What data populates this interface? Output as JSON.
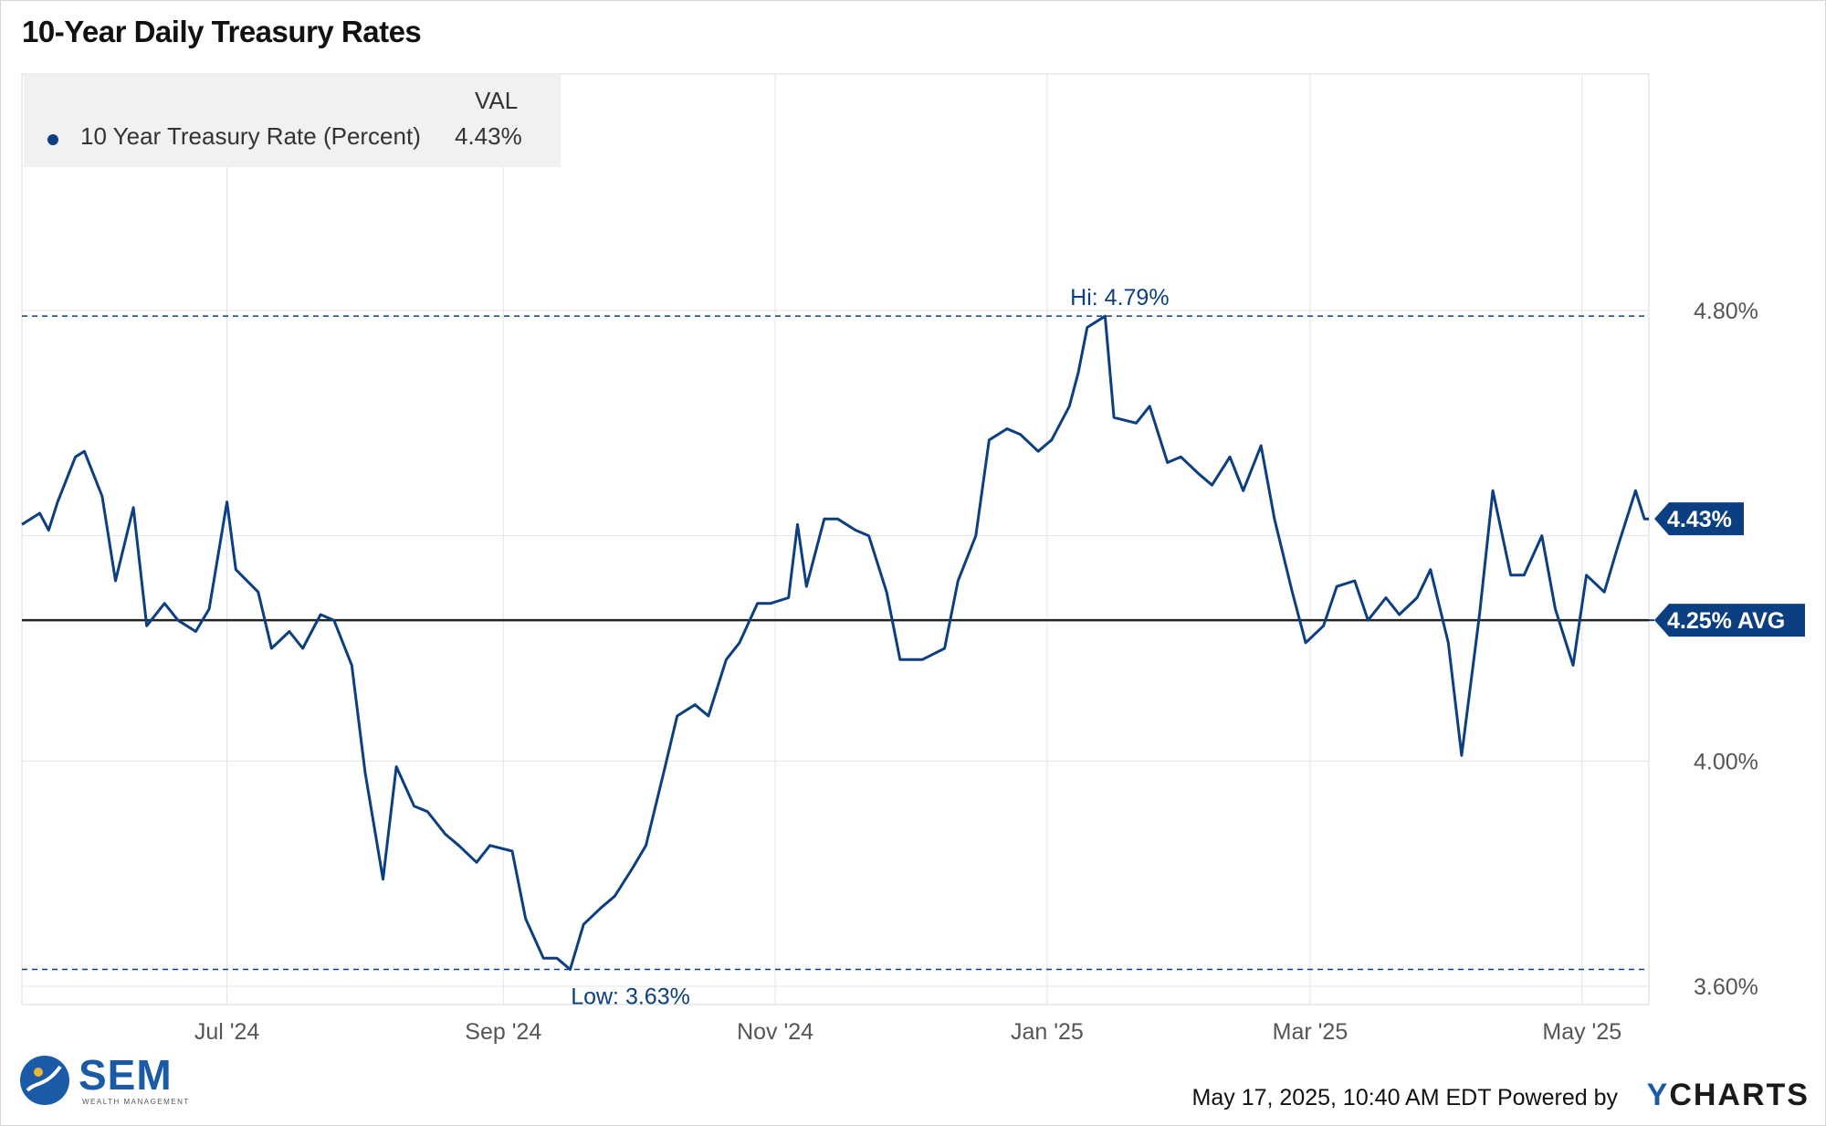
{
  "title": "10-Year Daily Treasury Rates",
  "legend": {
    "header": "VAL",
    "series_name": "10 Year Treasury Rate (Percent)",
    "series_value": "4.43%"
  },
  "footer": {
    "timestamp": "May 17, 2025, 10:40 AM EDT Powered by",
    "provider_y": "Y",
    "provider_rest": "CHARTS"
  },
  "logo": {
    "brand": "SEM",
    "tagline": "WEALTH MANAGEMENT"
  },
  "colors": {
    "series": "#0c3f82",
    "avg_line": "#222222",
    "grid": "#e3e3e3",
    "text_muted": "#555555"
  },
  "chart_data": {
    "type": "line",
    "title": "10-Year Daily Treasury Rates",
    "ylim": [
      3.6,
      4.8
    ],
    "y_ticks": [
      {
        "value": 4.8,
        "label": "4.80%"
      },
      {
        "value": 4.0,
        "label": "4.00%"
      },
      {
        "value": 3.6,
        "label": "3.60%"
      }
    ],
    "x_ticks": [
      {
        "date": "2024-07-01",
        "label": "Jul '24"
      },
      {
        "date": "2024-09-01",
        "label": "Sep '24"
      },
      {
        "date": "2024-11-01",
        "label": "Nov '24"
      },
      {
        "date": "2025-01-01",
        "label": "Jan '25"
      },
      {
        "date": "2025-03-01",
        "label": "Mar '25"
      },
      {
        "date": "2025-05-01",
        "label": "May '25"
      }
    ],
    "x_range": [
      "2024-05-16",
      "2025-05-16"
    ],
    "grid": true,
    "legend_position": "top-left",
    "reference_lines": [
      {
        "kind": "high",
        "value": 4.79,
        "label": "Hi: 4.79%"
      },
      {
        "kind": "low",
        "value": 3.63,
        "label": "Low: 3.63%"
      },
      {
        "kind": "avg",
        "value": 4.25,
        "label": "4.25% AVG"
      }
    ],
    "last_value": {
      "value": 4.43,
      "label": "4.43%"
    },
    "series": [
      {
        "name": "10 Year Treasury Rate (Percent)",
        "points": [
          [
            "2024-05-16",
            4.42
          ],
          [
            "2024-05-20",
            4.44
          ],
          [
            "2024-05-22",
            4.41
          ],
          [
            "2024-05-24",
            4.46
          ],
          [
            "2024-05-28",
            4.54
          ],
          [
            "2024-05-30",
            4.55
          ],
          [
            "2024-06-03",
            4.47
          ],
          [
            "2024-06-06",
            4.32
          ],
          [
            "2024-06-10",
            4.45
          ],
          [
            "2024-06-13",
            4.24
          ],
          [
            "2024-06-17",
            4.28
          ],
          [
            "2024-06-20",
            4.25
          ],
          [
            "2024-06-24",
            4.23
          ],
          [
            "2024-06-27",
            4.27
          ],
          [
            "2024-07-01",
            4.46
          ],
          [
            "2024-07-03",
            4.34
          ],
          [
            "2024-07-08",
            4.3
          ],
          [
            "2024-07-11",
            4.2
          ],
          [
            "2024-07-15",
            4.23
          ],
          [
            "2024-07-18",
            4.2
          ],
          [
            "2024-07-22",
            4.26
          ],
          [
            "2024-07-25",
            4.25
          ],
          [
            "2024-07-29",
            4.17
          ],
          [
            "2024-08-01",
            3.98
          ],
          [
            "2024-08-05",
            3.79
          ],
          [
            "2024-08-08",
            3.99
          ],
          [
            "2024-08-12",
            3.92
          ],
          [
            "2024-08-15",
            3.91
          ],
          [
            "2024-08-19",
            3.87
          ],
          [
            "2024-08-22",
            3.85
          ],
          [
            "2024-08-26",
            3.82
          ],
          [
            "2024-08-29",
            3.85
          ],
          [
            "2024-09-03",
            3.84
          ],
          [
            "2024-09-06",
            3.72
          ],
          [
            "2024-09-10",
            3.65
          ],
          [
            "2024-09-13",
            3.65
          ],
          [
            "2024-09-16",
            3.63
          ],
          [
            "2024-09-19",
            3.71
          ],
          [
            "2024-09-23",
            3.74
          ],
          [
            "2024-09-26",
            3.76
          ],
          [
            "2024-09-30",
            3.81
          ],
          [
            "2024-10-03",
            3.85
          ],
          [
            "2024-10-07",
            3.98
          ],
          [
            "2024-10-10",
            4.08
          ],
          [
            "2024-10-14",
            4.1
          ],
          [
            "2024-10-17",
            4.08
          ],
          [
            "2024-10-21",
            4.18
          ],
          [
            "2024-10-24",
            4.21
          ],
          [
            "2024-10-28",
            4.28
          ],
          [
            "2024-10-31",
            4.28
          ],
          [
            "2024-11-04",
            4.29
          ],
          [
            "2024-11-06",
            4.42
          ],
          [
            "2024-11-08",
            4.31
          ],
          [
            "2024-11-12",
            4.43
          ],
          [
            "2024-11-15",
            4.43
          ],
          [
            "2024-11-19",
            4.41
          ],
          [
            "2024-11-22",
            4.4
          ],
          [
            "2024-11-26",
            4.3
          ],
          [
            "2024-11-29",
            4.18
          ],
          [
            "2024-12-04",
            4.18
          ],
          [
            "2024-12-09",
            4.2
          ],
          [
            "2024-12-12",
            4.32
          ],
          [
            "2024-12-16",
            4.4
          ],
          [
            "2024-12-19",
            4.57
          ],
          [
            "2024-12-23",
            4.59
          ],
          [
            "2024-12-26",
            4.58
          ],
          [
            "2024-12-30",
            4.55
          ],
          [
            "2025-01-02",
            4.57
          ],
          [
            "2025-01-06",
            4.63
          ],
          [
            "2025-01-08",
            4.69
          ],
          [
            "2025-01-10",
            4.77
          ],
          [
            "2025-01-14",
            4.79
          ],
          [
            "2025-01-16",
            4.61
          ],
          [
            "2025-01-21",
            4.6
          ],
          [
            "2025-01-24",
            4.63
          ],
          [
            "2025-01-28",
            4.53
          ],
          [
            "2025-01-31",
            4.54
          ],
          [
            "2025-02-04",
            4.51
          ],
          [
            "2025-02-07",
            4.49
          ],
          [
            "2025-02-11",
            4.54
          ],
          [
            "2025-02-14",
            4.48
          ],
          [
            "2025-02-18",
            4.56
          ],
          [
            "2025-02-21",
            4.43
          ],
          [
            "2025-02-25",
            4.3
          ],
          [
            "2025-02-28",
            4.21
          ],
          [
            "2025-03-04",
            4.24
          ],
          [
            "2025-03-07",
            4.31
          ],
          [
            "2025-03-11",
            4.32
          ],
          [
            "2025-03-14",
            4.25
          ],
          [
            "2025-03-18",
            4.29
          ],
          [
            "2025-03-21",
            4.26
          ],
          [
            "2025-03-25",
            4.29
          ],
          [
            "2025-03-28",
            4.34
          ],
          [
            "2025-04-01",
            4.21
          ],
          [
            "2025-04-04",
            4.01
          ],
          [
            "2025-04-08",
            4.26
          ],
          [
            "2025-04-11",
            4.48
          ],
          [
            "2025-04-15",
            4.33
          ],
          [
            "2025-04-18",
            4.33
          ],
          [
            "2025-04-22",
            4.4
          ],
          [
            "2025-04-25",
            4.27
          ],
          [
            "2025-04-29",
            4.17
          ],
          [
            "2025-05-02",
            4.33
          ],
          [
            "2025-05-06",
            4.3
          ],
          [
            "2025-05-09",
            4.38
          ],
          [
            "2025-05-13",
            4.48
          ],
          [
            "2025-05-15",
            4.43
          ],
          [
            "2025-05-16",
            4.43
          ]
        ]
      }
    ]
  }
}
